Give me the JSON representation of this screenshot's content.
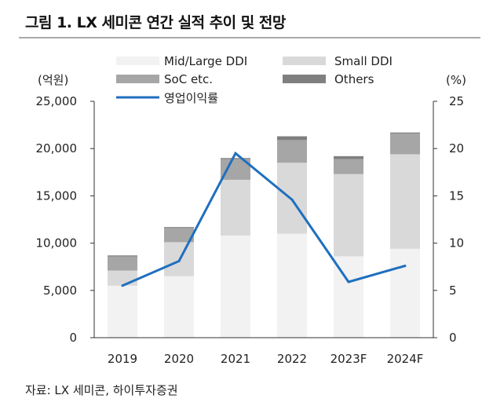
{
  "title": "그림 1. LX 세미콘 연간 실적 추이 및 전망",
  "source": "자료: LX 세미콘, 하이투자증권",
  "chart_data": {
    "type": "bar",
    "stacked": true,
    "categories": [
      "2019",
      "2020",
      "2021",
      "2022",
      "2023F",
      "2024F"
    ],
    "y_left_unit": "(억원)",
    "y_right_unit": "(%)",
    "ylim_left": [
      0,
      25000
    ],
    "ylim_right": [
      0,
      25
    ],
    "y_left_ticks": [
      "0",
      "5,000",
      "10,000",
      "15,000",
      "20,000",
      "25,000"
    ],
    "y_right_ticks": [
      "0",
      "5",
      "10",
      "15",
      "20",
      "25"
    ],
    "series": [
      {
        "name": "Mid/Large DDI",
        "color": "#f2f2f2",
        "values": [
          5500,
          6500,
          10800,
          11000,
          8600,
          9400
        ]
      },
      {
        "name": "Small DDI",
        "color": "#d9d9d9",
        "values": [
          1600,
          3600,
          5900,
          7500,
          8700,
          10000
        ]
      },
      {
        "name": "SoC etc.",
        "color": "#a6a6a6",
        "values": [
          1500,
          1500,
          2200,
          2400,
          1600,
          2200
        ]
      },
      {
        "name": "Others",
        "color": "#7f7f7f",
        "values": [
          100,
          100,
          100,
          400,
          300,
          100
        ]
      }
    ],
    "line": {
      "name": "영업이익률",
      "color": "#1f6fbf",
      "axis": "right",
      "values": [
        5.5,
        8.1,
        19.5,
        14.6,
        5.9,
        7.6
      ]
    }
  }
}
